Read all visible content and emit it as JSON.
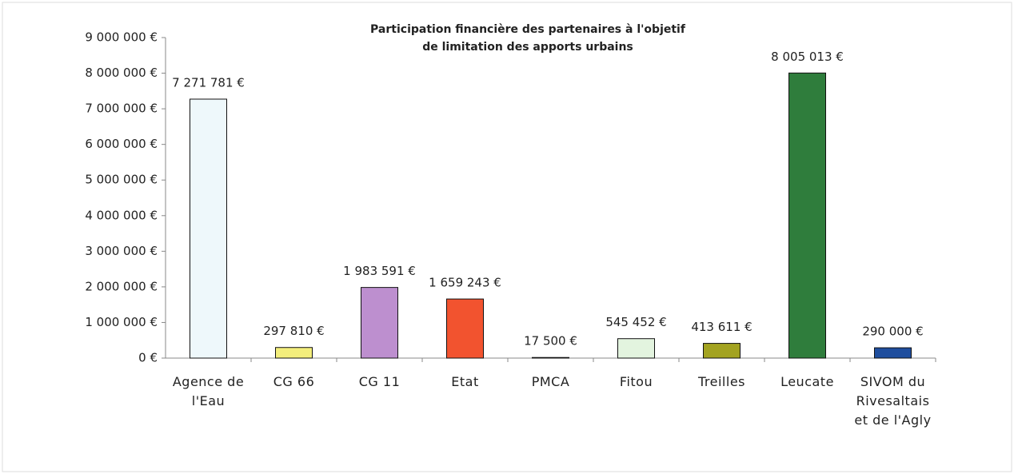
{
  "chart_data": {
    "type": "bar",
    "title": "Participation financière des partenaires à l'objetif de limitation des apports urbains",
    "categories": [
      "Agence de l'Eau",
      "CG 66",
      "CG 11",
      "Etat",
      "PMCA",
      "Fitou",
      "Treilles",
      "Leucate",
      "SIVOM du Rivesaltais et de l'Agly"
    ],
    "values": [
      7271781,
      297810,
      1983591,
      1659243,
      17500,
      545452,
      413611,
      8005013,
      290000
    ],
    "value_labels": [
      "7 271 781 €",
      "297 810 €",
      "1 983 591 €",
      "1 659 243 €",
      "17 500 €",
      "545 452 €",
      "413 611 €",
      "8 005 013 €",
      "290 000 €"
    ],
    "colors": [
      "#eef8fb",
      "#f3ee7c",
      "#bd8fcf",
      "#f2532f",
      "#e2e2e2",
      "#e3f4df",
      "#a3a320",
      "#2f7d3c",
      "#1f4e9e"
    ],
    "ylim": [
      0,
      9000000
    ],
    "yticks": [
      {
        "value": 0,
        "label": "0 €"
      },
      {
        "value": 1000000,
        "label": "1 000 000 €"
      },
      {
        "value": 2000000,
        "label": "2 000 000 €"
      },
      {
        "value": 3000000,
        "label": "3 000 000 €"
      },
      {
        "value": 4000000,
        "label": "4 000 000 €"
      },
      {
        "value": 5000000,
        "label": "5 000 000 €"
      },
      {
        "value": 6000000,
        "label": "6 000 000 €"
      },
      {
        "value": 7000000,
        "label": "7 000 000 €"
      },
      {
        "value": 8000000,
        "label": "8 000 000 €"
      },
      {
        "value": 9000000,
        "label": "9 000 000 €"
      }
    ],
    "grid": false
  }
}
